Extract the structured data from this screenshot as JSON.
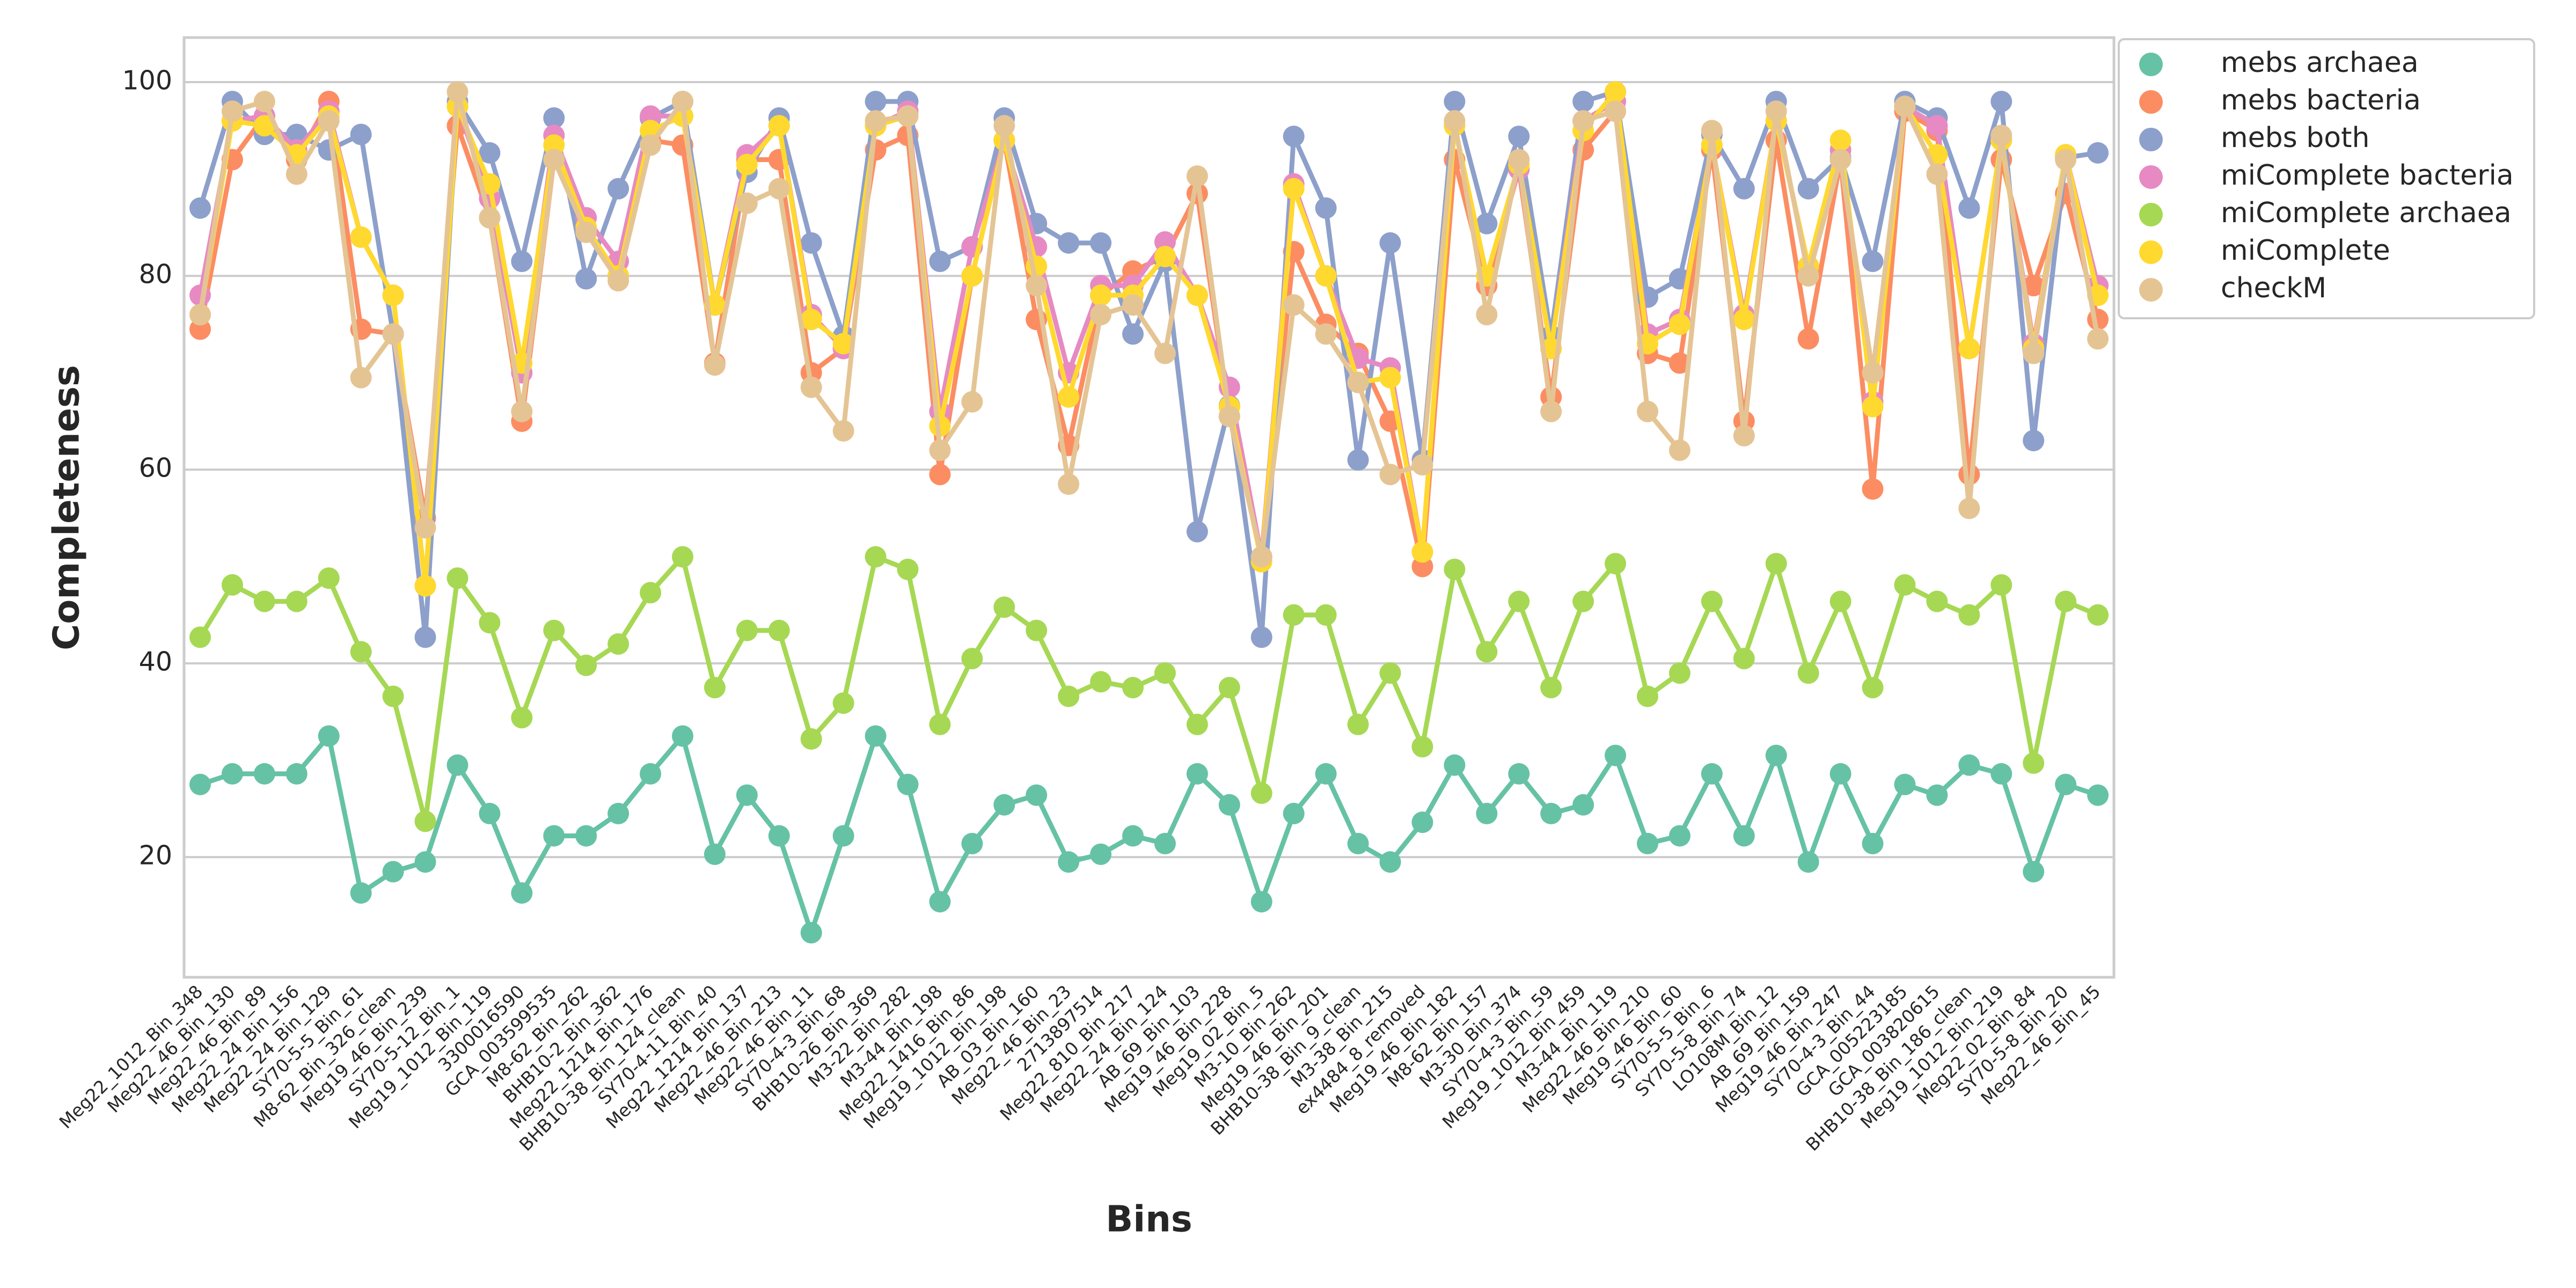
{
  "chart_data": {
    "type": "line",
    "x_label": "Bins",
    "y_label": "Completeness",
    "categories": [
      "Meg22_1012_Bin_348",
      "Meg22_46_Bin_130",
      "Meg22_46_Bin_89",
      "Meg22_24_Bin_156",
      "Meg22_24_Bin_129",
      "SY70-5-5_Bin_61",
      "M8-62_Bin_326_clean",
      "Meg19_46_Bin_239",
      "SY70-5-12_Bin_1",
      "Meg19_1012_Bin_119",
      "3300016590",
      "GCA_003599535",
      "M8-62_Bin_262",
      "BHB10-2_Bin_362",
      "Meg22_1214_Bin_176",
      "BHB10-38_Bin_124_clean",
      "SY70-4-11_Bin_40",
      "Meg22_1214_Bin_137",
      "Meg22_46_Bin_213",
      "Meg22_46_Bin_11",
      "SY70-4-3_Bin_68",
      "BHB10-26_Bin_369",
      "M3-22_Bin_282",
      "M3-44_Bin_198",
      "Meg22_1416_Bin_86",
      "Meg19_1012_Bin_198",
      "AB_03_Bin_160",
      "Meg22_46_Bin_23",
      "2713897514",
      "Meg22_810_Bin_217",
      "Meg22_24_Bin_124",
      "AB_69_Bin_103",
      "Meg19_46_Bin_228",
      "Meg19_02_Bin_5",
      "M3-10_Bin_262",
      "Meg19_46_Bin_201",
      "BHB10-38_Bin_9_clean",
      "M3-38_Bin_215",
      "ex4484_8_removed",
      "Meg19_46_Bin_182",
      "M8-62_Bin_157",
      "M3-30_Bin_374",
      "SY70-4-3_Bin_59",
      "Meg19_1012_Bin_459",
      "M3-44_Bin_119",
      "Meg22_46_Bin_210",
      "Meg19_46_Bin_60",
      "SY70-5-5_Bin_6",
      "SY70-5-8_Bin_74",
      "LO108M_Bin_12",
      "AB_69_Bin_159",
      "Meg19_46_Bin_247",
      "SY70-4-3_Bin_44",
      "GCA_005223185",
      "GCA_003820615",
      "BHB10-38_Bin_186_clean",
      "Meg19_1012_Bin_219",
      "Meg22_02_Bin_84",
      "SY70-5-8_Bin_20",
      "Meg22_46_Bin_45"
    ],
    "series": [
      {
        "name": "mebs archaea",
        "color": "#66c2a5",
        "values": [
          27.5,
          28.6,
          28.6,
          28.6,
          32.5,
          16.3,
          18.5,
          19.5,
          29.5,
          24.5,
          16.3,
          22.2,
          22.2,
          24.5,
          28.6,
          32.5,
          20.3,
          26.4,
          22.2,
          12.2,
          22.2,
          32.5,
          27.5,
          15.4,
          21.4,
          25.4,
          26.4,
          19.5,
          20.3,
          22.2,
          21.4,
          28.6,
          25.4,
          15.4,
          24.5,
          28.6,
          21.4,
          19.5,
          23.6,
          29.5,
          24.5,
          28.6,
          24.5,
          25.4,
          30.5,
          21.4,
          22.2,
          28.6,
          22.2,
          30.5,
          19.5,
          28.6,
          21.4,
          27.5,
          26.4,
          29.5,
          28.6,
          18.5,
          27.5,
          26.4
        ]
      },
      {
        "name": "mebs bacteria",
        "color": "#fc8d62",
        "values": [
          74.5,
          92,
          96.5,
          92,
          98,
          74.5,
          74,
          55,
          95.5,
          86,
          65,
          92,
          85,
          80,
          94,
          93.5,
          71,
          92,
          92,
          70,
          72.5,
          93,
          94.5,
          59.5,
          80,
          94,
          75.5,
          62.5,
          78,
          80.5,
          82,
          88.5,
          65.5,
          51,
          82.5,
          75,
          72,
          65,
          50,
          92,
          79,
          91,
          67.5,
          93,
          97,
          72,
          71,
          93,
          65,
          94,
          73.5,
          92,
          58,
          97,
          95,
          59.5,
          92,
          79,
          88.5,
          75.5
        ]
      },
      {
        "name": "mebs both",
        "color": "#8da0cb",
        "values": [
          87,
          98,
          94.6,
          94.6,
          93,
          94.6,
          74,
          42.7,
          98,
          92.7,
          81.5,
          96.3,
          79.7,
          89,
          96.3,
          98,
          77,
          90.7,
          96.3,
          83.4,
          73.8,
          98,
          98,
          81.5,
          83,
          96.3,
          85.4,
          83.4,
          83.4,
          74,
          81.5,
          53.6,
          66.6,
          42.7,
          94.4,
          87,
          61,
          83.4,
          61,
          98,
          85.4,
          94.4,
          73.8,
          98,
          99,
          77.8,
          79.7,
          94.6,
          89,
          98,
          89,
          92.2,
          81.5,
          98,
          96.3,
          87,
          98,
          63,
          92.2,
          92.7
        ]
      },
      {
        "name": "miComplete bacteria",
        "color": "#e78ac3",
        "values": [
          78,
          96,
          96.5,
          93,
          97,
          84,
          78,
          48,
          97.5,
          88,
          70,
          94.5,
          86,
          81.5,
          96.5,
          96.5,
          77,
          92.5,
          95.5,
          76,
          72.5,
          95.5,
          97,
          66,
          83,
          94,
          83,
          70,
          79,
          79,
          83.5,
          78,
          68.5,
          51,
          89.5,
          80,
          71.5,
          70.5,
          51.5,
          95.5,
          80,
          91,
          72.5,
          96,
          98,
          74,
          75.5,
          93.5,
          76,
          96,
          81,
          93,
          67,
          97.5,
          95.5,
          72.5,
          94,
          73,
          92.5,
          79
        ]
      },
      {
        "name": "miComplete archaea",
        "color": "#a6d854",
        "values": [
          42.7,
          48.1,
          46.4,
          46.4,
          48.8,
          41.2,
          36.6,
          23.7,
          48.8,
          44.2,
          34.4,
          43.4,
          39.8,
          42,
          47.3,
          51,
          37.5,
          43.4,
          43.4,
          32.2,
          35.9,
          51,
          49.7,
          33.7,
          40.5,
          45.8,
          43.4,
          36.6,
          38.1,
          37.5,
          39,
          33.7,
          37.5,
          26.6,
          45,
          45,
          33.7,
          39,
          31.4,
          49.7,
          41.2,
          46.4,
          37.5,
          46.4,
          50.3,
          36.6,
          39,
          46.4,
          40.5,
          50.3,
          39,
          46.4,
          37.5,
          48.1,
          46.4,
          45,
          48.1,
          29.7,
          46.4,
          45
        ]
      },
      {
        "name": "miComplete",
        "color": "#ffd92f",
        "values": [
          76,
          96,
          95.5,
          92.5,
          96.5,
          84,
          78,
          48,
          97.5,
          89.5,
          71,
          93.5,
          85,
          80,
          95,
          96.5,
          77,
          91.5,
          95.5,
          75.5,
          73,
          95.5,
          96.5,
          64.5,
          80,
          94,
          81,
          67.5,
          78,
          78,
          82,
          78,
          66.5,
          50.5,
          89,
          80,
          69,
          69.5,
          51.5,
          95.5,
          80,
          91.5,
          72.5,
          95,
          99,
          73,
          75,
          93.5,
          75.5,
          96,
          81,
          94,
          66.5,
          97.5,
          92.5,
          72.5,
          94,
          72.5,
          92.5,
          78
        ]
      },
      {
        "name": "checkM",
        "color": "#e5c494",
        "values": [
          76,
          97,
          98,
          90.5,
          96,
          69.5,
          74,
          54,
          99,
          86,
          66,
          92,
          84.5,
          79.5,
          93.5,
          98,
          70.8,
          87.5,
          89,
          68.5,
          64,
          96,
          96.5,
          62,
          67,
          95.5,
          79,
          58.5,
          76,
          77,
          72,
          90.3,
          65.5,
          51,
          77,
          74,
          69,
          59.5,
          60.5,
          96,
          76,
          92,
          66,
          96,
          97,
          66,
          62,
          95,
          63.5,
          97,
          80,
          92,
          70,
          97.5,
          90.5,
          56,
          94.5,
          72,
          92,
          73.5
        ]
      }
    ],
    "ylim": [
      7.6,
      104.6
    ],
    "yticks": [
      20,
      40,
      60,
      80,
      100
    ],
    "grid": true,
    "legend": "upper right outside"
  }
}
